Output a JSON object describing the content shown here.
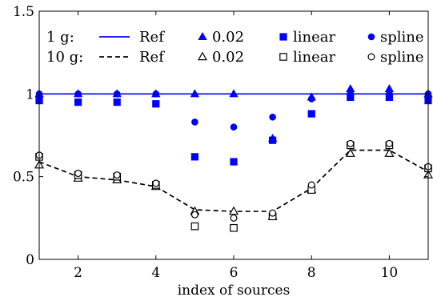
{
  "chart_data": {
    "type": "line",
    "title": "",
    "xlabel": "index of sources",
    "ylabel": "",
    "xlim": [
      1,
      11
    ],
    "ylim": [
      0,
      1.5
    ],
    "xticks": [
      2,
      4,
      6,
      8,
      10
    ],
    "xtick_labels": [
      "2",
      "4",
      "6",
      "8",
      "10"
    ],
    "yticks": [
      0,
      0.5,
      1,
      1.5
    ],
    "ytick_labels": [
      "0",
      "0.5",
      "1",
      "1.5"
    ],
    "grid": false,
    "legend_position": "top",
    "legend": {
      "row1_label": "1 g:",
      "row2_label": "10 g:",
      "ref": "Ref",
      "ratio": "0.02",
      "linear": "linear",
      "spline": "spline"
    },
    "colors": {
      "1g": "#0000ff",
      "10g": "#000000"
    },
    "x": [
      1,
      2,
      3,
      4,
      5,
      6,
      7,
      8,
      9,
      10,
      11
    ],
    "series": [
      {
        "name": "Ref",
        "group": "1 g",
        "style": "solid-line",
        "values": [
          1,
          1,
          1,
          1,
          1,
          1,
          1,
          1,
          1,
          1,
          1
        ]
      },
      {
        "name": "0.02",
        "group": "1 g",
        "style": "filled-triangle",
        "values": [
          1.0,
          1.0,
          1.0,
          1.0,
          1.0,
          1.0,
          0.73,
          0.98,
          1.03,
          1.03,
          1.0
        ]
      },
      {
        "name": "linear",
        "group": "1 g",
        "style": "filled-square",
        "values": [
          0.96,
          0.95,
          0.95,
          0.94,
          0.62,
          0.59,
          0.72,
          0.88,
          0.98,
          0.98,
          0.96
        ]
      },
      {
        "name": "spline",
        "group": "1 g",
        "style": "filled-circle",
        "values": [
          1.0,
          1.0,
          1.0,
          1.0,
          0.83,
          0.8,
          0.86,
          0.97,
          1.0,
          1.0,
          1.0
        ]
      },
      {
        "name": "Ref",
        "group": "10 g",
        "style": "dashed-line",
        "values": [
          0.59,
          0.5,
          0.48,
          0.44,
          0.3,
          0.29,
          0.29,
          0.43,
          0.66,
          0.66,
          0.53
        ]
      },
      {
        "name": "0.02",
        "group": "10 g",
        "style": "open-triangle",
        "values": [
          0.57,
          0.49,
          0.48,
          0.44,
          0.29,
          0.29,
          0.26,
          0.42,
          0.64,
          0.64,
          0.51
        ]
      },
      {
        "name": "linear",
        "group": "10 g",
        "style": "open-square",
        "values": [
          0.62,
          0.51,
          0.5,
          0.45,
          0.2,
          0.19,
          0.26,
          0.42,
          0.69,
          0.69,
          0.55
        ]
      },
      {
        "name": "spline",
        "group": "10 g",
        "style": "open-circle",
        "values": [
          0.63,
          0.52,
          0.51,
          0.46,
          0.27,
          0.25,
          0.28,
          0.45,
          0.7,
          0.7,
          0.56
        ]
      }
    ]
  }
}
